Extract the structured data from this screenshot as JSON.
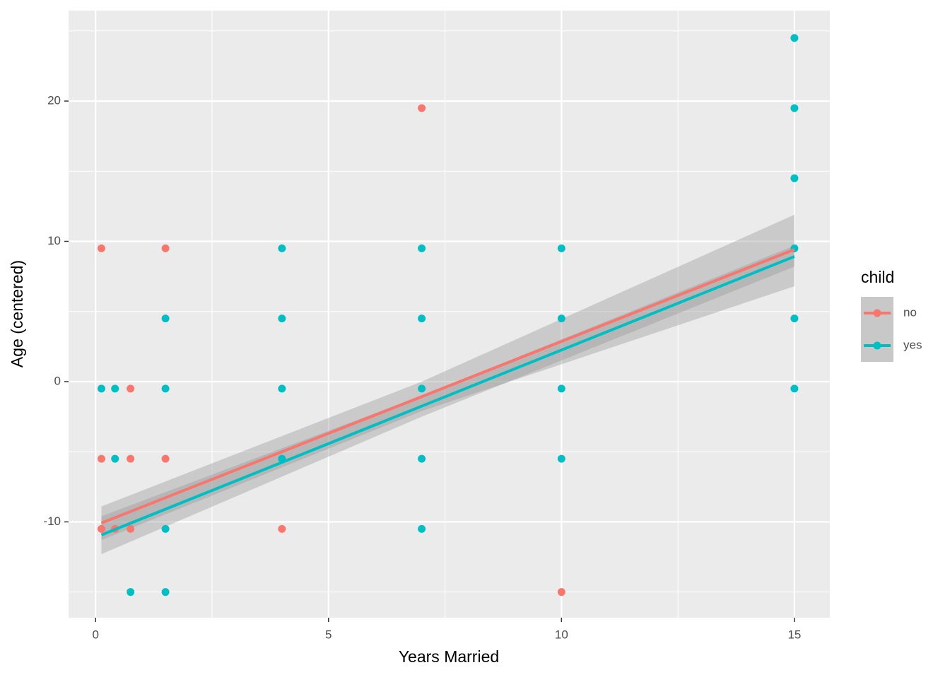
{
  "chart_data": {
    "type": "scatter",
    "x_label": "Years Married",
    "y_label": "Age (centered)",
    "legend_title": "child",
    "xlim": [
      -0.58,
      15.76
    ],
    "ylim": [
      -16.83,
      26.45
    ],
    "xticks": [
      0,
      5,
      10,
      15
    ],
    "yticks": [
      -10,
      0,
      10,
      20
    ],
    "xminor": [
      2.5,
      7.5,
      12.5
    ],
    "yminor": [
      -15,
      -5,
      5,
      15,
      25
    ],
    "grid": true,
    "series": [
      {
        "name": "yes",
        "color": "#00BFC4",
        "x": [
          0.125,
          0.417,
          0.417,
          0.75,
          1.5,
          1.5,
          1.5,
          1.5,
          4,
          4,
          4,
          4,
          7,
          7,
          7,
          7,
          7,
          10,
          10,
          10,
          10,
          15,
          15,
          15,
          15,
          15,
          15
        ],
        "values": [
          -0.5,
          -0.5,
          -5.5,
          -15,
          4.5,
          -0.5,
          -10.5,
          -15,
          9.5,
          4.5,
          -0.5,
          -5.5,
          9.5,
          4.5,
          -0.5,
          -5.5,
          -10.5,
          9.5,
          4.5,
          -0.5,
          -5.5,
          24.5,
          19.5,
          14.5,
          9.5,
          4.5,
          -0.5
        ],
        "fit": {
          "x": [
            0.125,
            7,
            15
          ],
          "values": [
            -10.93,
            -1.75,
            8.92
          ],
          "lower": [
            -12.3,
            -2.5,
            8.2
          ],
          "upper": [
            -9.6,
            -1.0,
            9.7
          ]
        }
      },
      {
        "name": "no",
        "color": "#F8766D",
        "x": [
          0.125,
          0.125,
          0.125,
          0.417,
          0.75,
          0.75,
          0.75,
          1.5,
          1.5,
          4,
          7,
          10
        ],
        "values": [
          9.5,
          -5.5,
          -10.5,
          -10.5,
          -0.5,
          -5.5,
          -10.5,
          9.5,
          -5.5,
          -10.5,
          19.5,
          -15
        ],
        "fit": {
          "x": [
            0.125,
            7,
            15
          ],
          "values": [
            -10.08,
            -1.07,
            9.42
          ],
          "lower": [
            -11.3,
            -2.1,
            6.8
          ],
          "upper": [
            -8.9,
            0.0,
            11.9
          ]
        }
      }
    ]
  }
}
